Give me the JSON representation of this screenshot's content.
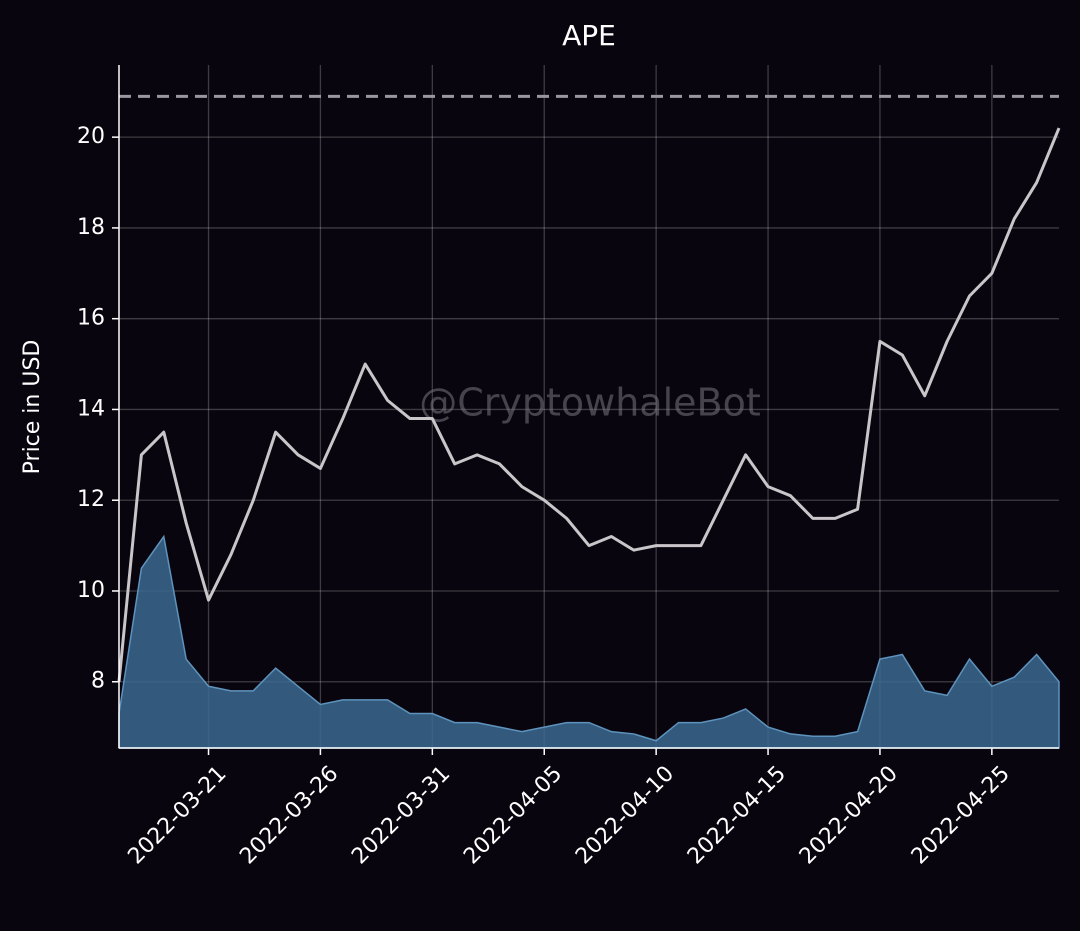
{
  "chart_data": {
    "type": "line",
    "title": "APE",
    "ylabel": "Price in USD",
    "watermark": "@CryptowhaleBot",
    "x": [
      "2022-03-17",
      "2022-03-18",
      "2022-03-19",
      "2022-03-20",
      "2022-03-21",
      "2022-03-22",
      "2022-03-23",
      "2022-03-24",
      "2022-03-25",
      "2022-03-26",
      "2022-03-27",
      "2022-03-28",
      "2022-03-29",
      "2022-03-30",
      "2022-03-31",
      "2022-04-01",
      "2022-04-02",
      "2022-04-03",
      "2022-04-04",
      "2022-04-05",
      "2022-04-06",
      "2022-04-07",
      "2022-04-08",
      "2022-04-09",
      "2022-04-10",
      "2022-04-11",
      "2022-04-12",
      "2022-04-13",
      "2022-04-14",
      "2022-04-15",
      "2022-04-16",
      "2022-04-17",
      "2022-04-18",
      "2022-04-19",
      "2022-04-20",
      "2022-04-21",
      "2022-04-22",
      "2022-04-23",
      "2022-04-24",
      "2022-04-25",
      "2022-04-26",
      "2022-04-27",
      "2022-04-28"
    ],
    "series": [
      {
        "kind": "line",
        "color": "#c9c5c9",
        "values": [
          8.0,
          13.0,
          13.5,
          11.5,
          9.8,
          10.8,
          12.0,
          13.5,
          13.0,
          12.7,
          13.8,
          15.0,
          14.2,
          13.8,
          13.8,
          12.8,
          13.0,
          12.8,
          12.3,
          12.0,
          11.6,
          11.0,
          11.2,
          10.9,
          11.0,
          11.0,
          11.0,
          12.0,
          13.0,
          12.3,
          12.1,
          11.6,
          11.6,
          11.8,
          15.5,
          15.2,
          14.3,
          15.5,
          16.5,
          17.0,
          18.2,
          19.0,
          20.2
        ]
      },
      {
        "kind": "area",
        "color": "#3b6a91",
        "values": [
          7.3,
          10.5,
          11.2,
          8.5,
          7.9,
          7.8,
          7.8,
          8.3,
          7.9,
          7.5,
          7.6,
          7.6,
          7.6,
          7.3,
          7.3,
          7.1,
          7.1,
          7.0,
          6.9,
          7.0,
          7.1,
          7.1,
          6.9,
          6.85,
          6.7,
          7.1,
          7.1,
          7.2,
          7.4,
          7.0,
          6.85,
          6.8,
          6.8,
          6.9,
          8.5,
          8.6,
          7.8,
          7.7,
          8.5,
          7.9,
          8.1,
          8.6,
          8.0
        ]
      }
    ],
    "max_line": 20.9,
    "xlim": [
      "2022-03-17",
      "2022-04-28"
    ],
    "xticks": [
      "2022-03-21",
      "2022-03-26",
      "2022-03-31",
      "2022-04-05",
      "2022-04-10",
      "2022-04-15",
      "2022-04-20",
      "2022-04-25"
    ],
    "ylim": [
      6.54,
      21.59
    ],
    "yticks": [
      8,
      10,
      12,
      14,
      16,
      18,
      20
    ],
    "grid": true
  }
}
